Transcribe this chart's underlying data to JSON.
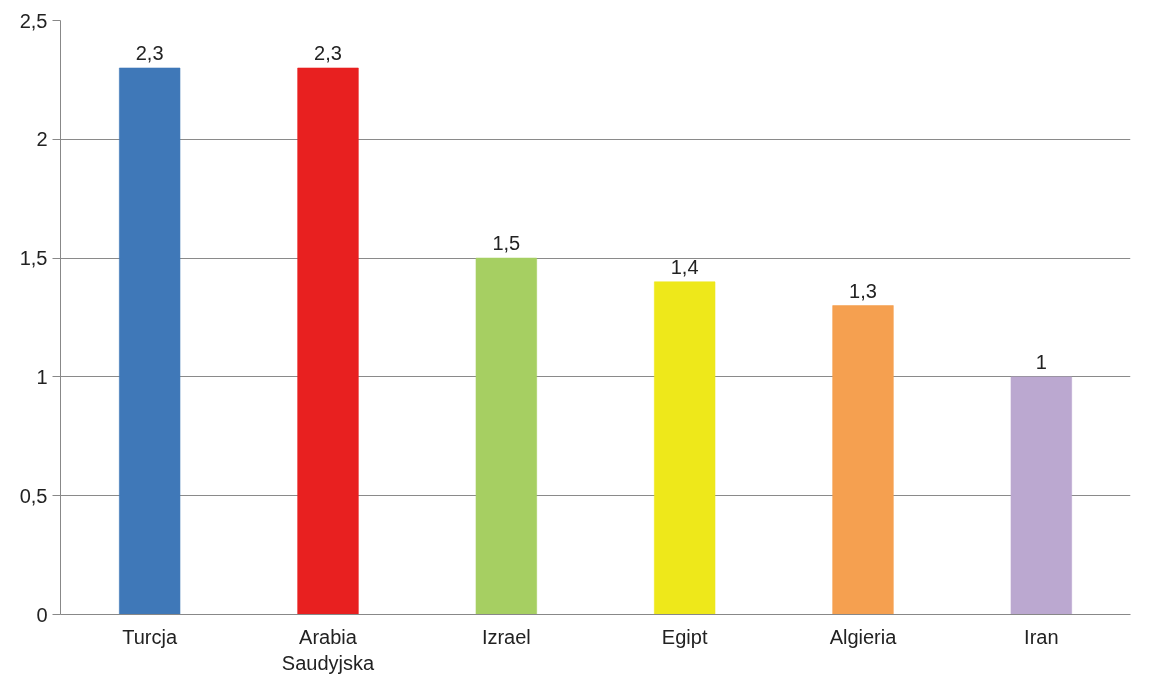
{
  "chart_data": {
    "type": "bar",
    "categories": [
      "Turcja",
      "Arabia Saudyjska",
      "Izrael",
      "Egipt",
      "Algieria",
      "Iran"
    ],
    "values": [
      2.3,
      2.3,
      1.5,
      1.4,
      1.3,
      1
    ],
    "colors": [
      "#3f78b8",
      "#e82020",
      "#a6cf62",
      "#eee81a",
      "#f5a050",
      "#bba8d0"
    ],
    "value_labels": [
      "2,3",
      "2,3",
      "1,5",
      "1,4",
      "1,3",
      "1"
    ],
    "ylim": [
      0,
      2.5
    ],
    "yticks": [
      0,
      {
        "value": 0.5,
        "label": "0,5"
      },
      1,
      {
        "value": 1.5,
        "label": "1,5"
      },
      2,
      {
        "value": 2.5,
        "label": "2,5"
      }
    ],
    "grid": "y"
  }
}
